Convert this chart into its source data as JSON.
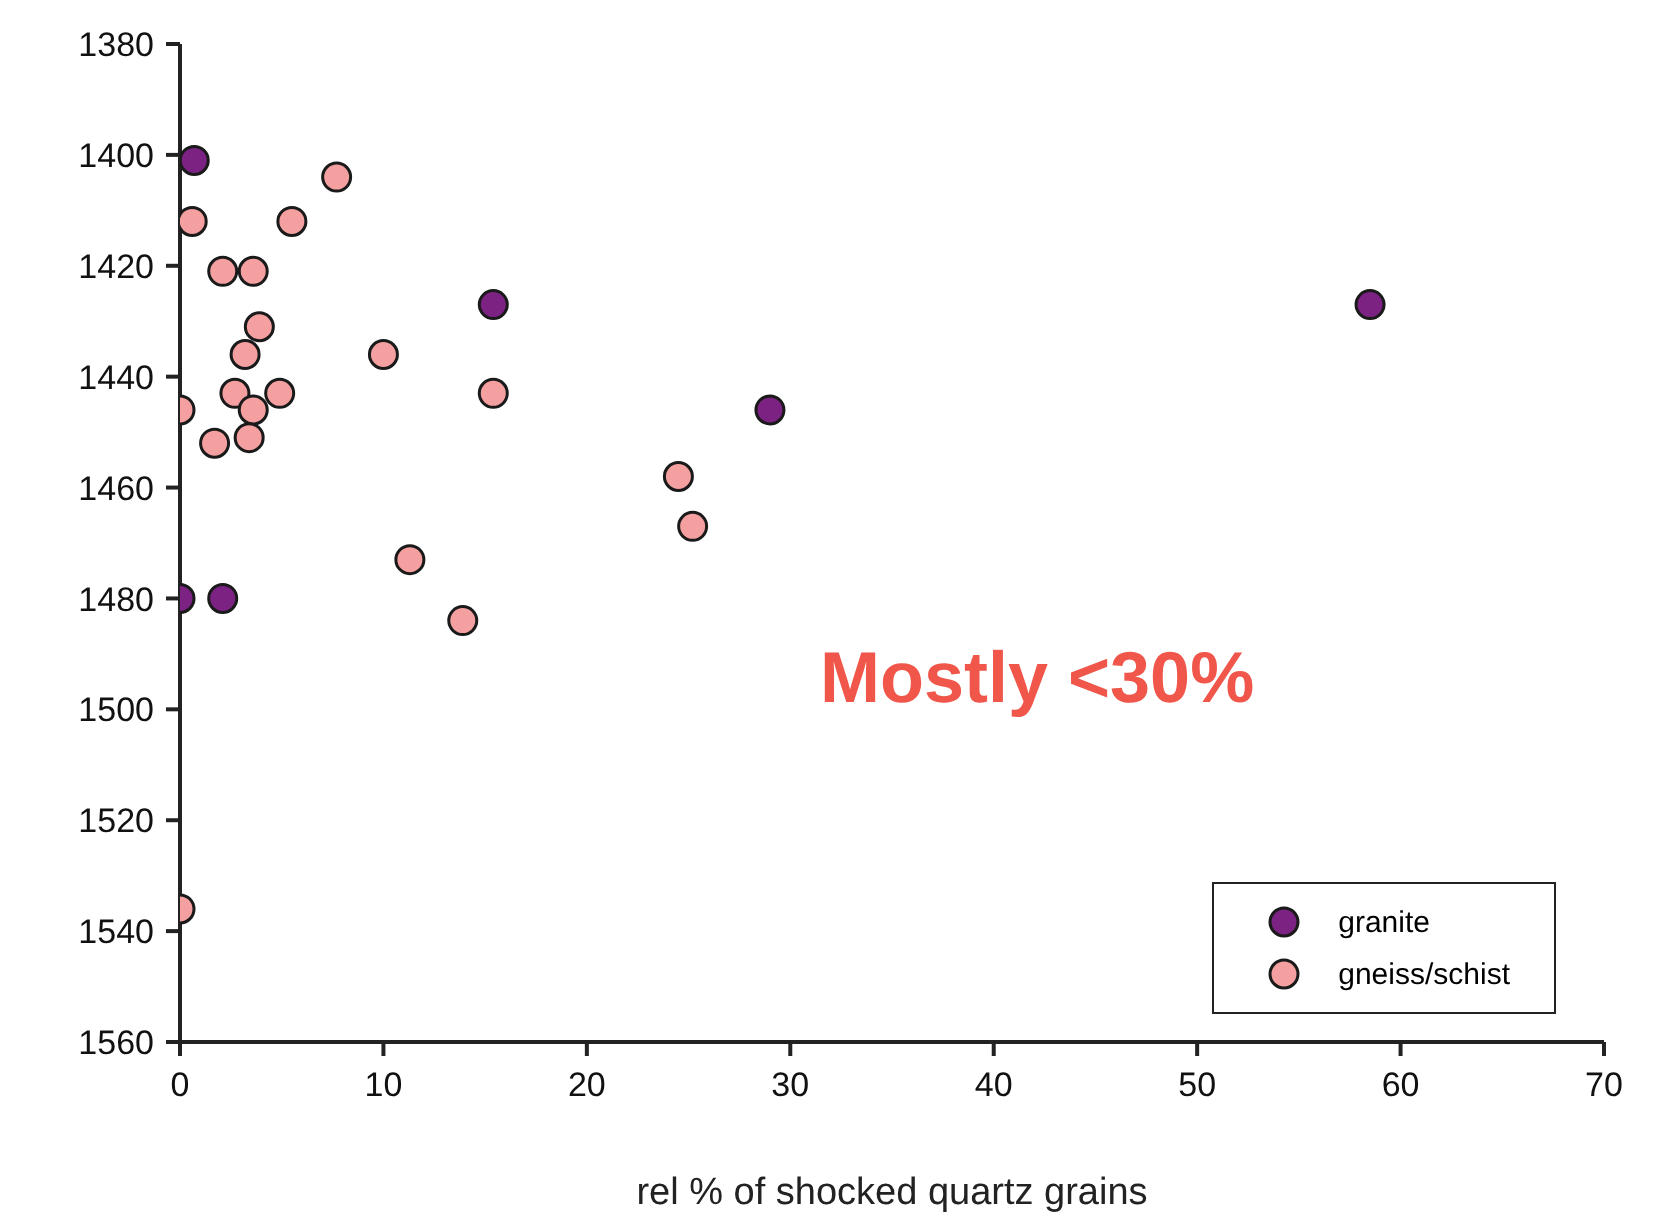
{
  "chart_data": {
    "type": "scatter",
    "xlabel": "rel % of shocked quartz grains",
    "xlim": [
      0,
      70
    ],
    "xticks": [
      0,
      10,
      20,
      30,
      40,
      50,
      60,
      70
    ],
    "ylim": [
      1560,
      1380
    ],
    "yticks": [
      1380,
      1400,
      1420,
      1440,
      1460,
      1480,
      1500,
      1520,
      1540,
      1560
    ],
    "grid": false,
    "legend": "bottom right",
    "marker": "circle",
    "annotations": [
      "Mostly <30%"
    ],
    "series": [
      {
        "name": "granite",
        "color": "#7b2282",
        "x": [
          0.7,
          15.4,
          58.5,
          29,
          0,
          2.1
        ],
        "values": [
          1401,
          1427,
          1427,
          1446,
          1480,
          1480
        ]
      },
      {
        "name": "gneiss/schist",
        "color": "#f4a0a0",
        "x": [
          7.7,
          0.6,
          5.5,
          2.1,
          3.6,
          3.9,
          3.2,
          10,
          2.7,
          4.9,
          15.4,
          3.6,
          0,
          1.7,
          3.4,
          24.5,
          25.2,
          11.3,
          13.9,
          0
        ],
        "values": [
          1404,
          1412,
          1412,
          1421,
          1421,
          1431,
          1436,
          1436,
          1443,
          1443,
          1443,
          1446,
          1446,
          1452,
          1451,
          1458,
          1467,
          1473,
          1484,
          1536
        ]
      }
    ]
  }
}
